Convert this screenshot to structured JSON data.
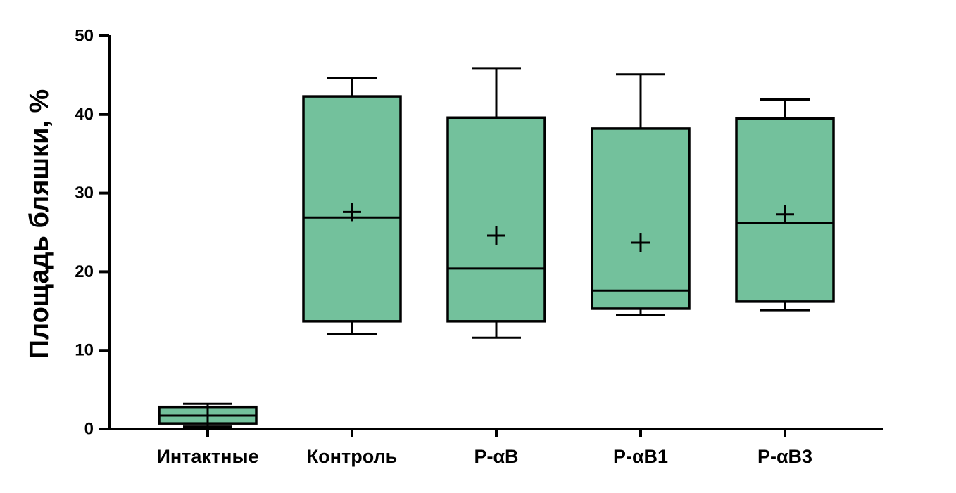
{
  "chart_data": {
    "type": "box",
    "ylabel": "Площадь бляшки, %",
    "xlabel": "",
    "ylim": [
      0,
      50
    ],
    "yticks": [
      0,
      10,
      20,
      30,
      40,
      50
    ],
    "grid": false,
    "legend": "none",
    "box_color": "#73c19c",
    "line_color": "#000000",
    "categories": [
      "Интактные",
      "Контроль",
      "P-αB",
      "P-αB1",
      "P-αB3"
    ],
    "boxes": [
      {
        "category": "Интактные",
        "whisker_low": 0.3,
        "q1": 0.7,
        "median": 1.7,
        "q3": 2.8,
        "whisker_high": 3.2,
        "mean": 1.7
      },
      {
        "category": "Контроль",
        "whisker_low": 12.1,
        "q1": 13.7,
        "median": 26.9,
        "q3": 42.3,
        "whisker_high": 44.6,
        "mean": 27.6
      },
      {
        "category": "P-αB",
        "whisker_low": 11.6,
        "q1": 13.7,
        "median": 20.4,
        "q3": 39.6,
        "whisker_high": 45.9,
        "mean": 24.6
      },
      {
        "category": "P-αB1",
        "whisker_low": 14.5,
        "q1": 15.3,
        "median": 17.6,
        "q3": 38.2,
        "whisker_high": 45.1,
        "mean": 23.7
      },
      {
        "category": "P-αB3",
        "whisker_low": 15.1,
        "q1": 16.2,
        "median": 26.2,
        "q3": 39.5,
        "whisker_high": 41.9,
        "mean": 27.3
      }
    ]
  }
}
